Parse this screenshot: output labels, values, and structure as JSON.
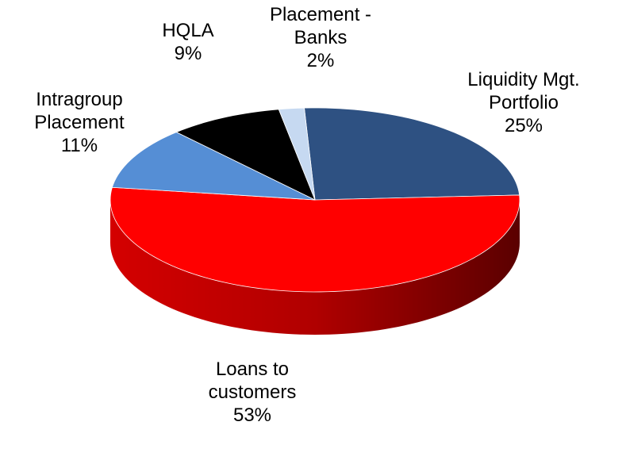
{
  "chart_data": {
    "type": "pie",
    "categories": [
      "Liquidity Mgt. Portfolio",
      "Loans to customers",
      "Intragroup Placement",
      "HQLA",
      "Placement -Banks"
    ],
    "values": [
      25,
      53,
      11,
      9,
      2
    ],
    "value_labels": [
      "25%",
      "53%",
      "11%",
      "9%",
      "2%"
    ],
    "colors": [
      "#2e5182",
      "#ff0000",
      "#558ed5",
      "#000000",
      "#c6d9f1"
    ]
  }
}
